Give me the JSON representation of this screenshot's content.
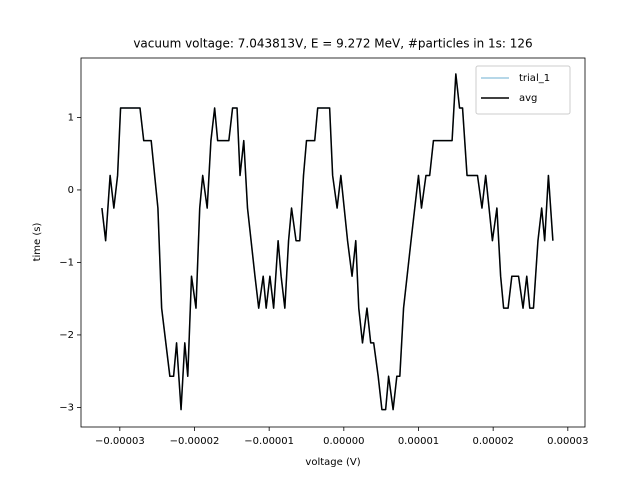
{
  "chart_data": {
    "type": "line",
    "title": "vacuum voltage: 7.043813V, E = 9.272 MeV, #particles in 1s: 126",
    "x_label": "voltage (V)",
    "y_label": "time (s)",
    "x": [
      -3.24e-05,
      -3.19e-05,
      -3.13e-05,
      -3.08e-05,
      -3.03e-05,
      -2.99e-05,
      -2.73e-05,
      -2.68e-05,
      -2.58e-05,
      -2.49e-05,
      -2.44e-05,
      -2.33e-05,
      -2.28e-05,
      -2.24e-05,
      -2.18e-05,
      -2.13e-05,
      -2.09e-05,
      -2.04e-05,
      -1.98e-05,
      -1.93e-05,
      -1.89e-05,
      -1.83e-05,
      -1.78e-05,
      -1.73e-05,
      -1.69e-05,
      -1.54e-05,
      -1.49e-05,
      -1.43e-05,
      -1.39e-05,
      -1.34e-05,
      -1.29e-05,
      -1.19e-05,
      -1.14e-05,
      -1.08e-05,
      -1.04e-05,
      -9.9e-06,
      -9.4e-06,
      -8.8e-06,
      -8.4e-06,
      -7.9e-06,
      -7.4e-06,
      -7e-06,
      -6.4e-06,
      -5.9e-06,
      -5.4e-06,
      -5e-06,
      -3.9e-06,
      -3.5e-06,
      -1.9e-06,
      -1.5e-06,
      -9e-07,
      -4e-07,
      5e-07,
      1.1e-06,
      1.6e-06,
      2e-06,
      2.5e-06,
      3.1e-06,
      3.6e-06,
      4e-06,
      4.6e-06,
      5.1e-06,
      5.6e-06,
      6e-06,
      6.6e-06,
      7.1e-06,
      7.5e-06,
      8e-06,
      9e-06,
      1e-05,
      1.04e-05,
      1.1e-05,
      1.15e-05,
      1.2e-05,
      1.45e-05,
      1.5e-05,
      1.55e-05,
      1.59e-05,
      1.65e-05,
      1.79e-05,
      1.85e-05,
      1.9e-05,
      1.99e-05,
      2.05e-05,
      2.1e-05,
      2.14e-05,
      2.2e-05,
      2.25e-05,
      2.34e-05,
      2.4e-05,
      2.45e-05,
      2.49e-05,
      2.54e-05,
      2.6e-05,
      2.65e-05,
      2.69e-05,
      2.74e-05,
      2.8e-05
    ],
    "series": [
      {
        "name": "trial_1",
        "color": "#9ecae1",
        "values": [
          -0.25,
          -0.7,
          0.2,
          -0.25,
          0.2,
          1.13,
          1.13,
          0.68,
          0.68,
          -0.25,
          -1.63,
          -2.57,
          -2.57,
          -2.11,
          -3.03,
          -2.11,
          -2.57,
          -1.19,
          -1.63,
          -0.25,
          0.2,
          -0.25,
          0.68,
          1.13,
          0.68,
          0.68,
          1.13,
          1.13,
          0.2,
          0.68,
          -0.25,
          -1.19,
          -1.63,
          -1.19,
          -1.63,
          -1.19,
          -1.63,
          -0.7,
          -1.19,
          -1.63,
          -0.7,
          -0.25,
          -0.7,
          -0.7,
          0.2,
          0.68,
          0.68,
          1.13,
          1.13,
          0.2,
          -0.25,
          0.2,
          -0.7,
          -1.19,
          -0.7,
          -1.63,
          -2.11,
          -1.63,
          -2.11,
          -2.11,
          -2.57,
          -3.03,
          -3.03,
          -2.57,
          -3.03,
          -2.57,
          -2.57,
          -1.63,
          -0.7,
          0.2,
          -0.25,
          0.2,
          0.2,
          0.68,
          0.68,
          1.6,
          1.13,
          1.13,
          0.2,
          0.2,
          -0.25,
          0.2,
          -0.7,
          -0.25,
          -1.19,
          -1.63,
          -1.63,
          -1.19,
          -1.19,
          -1.63,
          -1.19,
          -1.63,
          -1.63,
          -0.7,
          -0.25,
          -0.7,
          0.2,
          -0.7
        ]
      },
      {
        "name": "avg",
        "color": "#000000",
        "values": [
          -0.25,
          -0.7,
          0.2,
          -0.25,
          0.2,
          1.13,
          1.13,
          0.68,
          0.68,
          -0.25,
          -1.63,
          -2.57,
          -2.57,
          -2.11,
          -3.03,
          -2.11,
          -2.57,
          -1.19,
          -1.63,
          -0.25,
          0.2,
          -0.25,
          0.68,
          1.13,
          0.68,
          0.68,
          1.13,
          1.13,
          0.2,
          0.68,
          -0.25,
          -1.19,
          -1.63,
          -1.19,
          -1.63,
          -1.19,
          -1.63,
          -0.7,
          -1.19,
          -1.63,
          -0.7,
          -0.25,
          -0.7,
          -0.7,
          0.2,
          0.68,
          0.68,
          1.13,
          1.13,
          0.2,
          -0.25,
          0.2,
          -0.7,
          -1.19,
          -0.7,
          -1.63,
          -2.11,
          -1.63,
          -2.11,
          -2.11,
          -2.57,
          -3.03,
          -3.03,
          -2.57,
          -3.03,
          -2.57,
          -2.57,
          -1.63,
          -0.7,
          0.2,
          -0.25,
          0.2,
          0.2,
          0.68,
          0.68,
          1.6,
          1.13,
          1.13,
          0.2,
          0.2,
          -0.25,
          0.2,
          -0.7,
          -0.25,
          -1.19,
          -1.63,
          -1.63,
          -1.19,
          -1.19,
          -1.63,
          -1.19,
          -1.63,
          -1.63,
          -0.7,
          -0.25,
          -0.7,
          0.2,
          -0.7
        ]
      }
    ],
    "xlim": [
      -3.52e-05,
      3.23e-05
    ],
    "ylim": [
      -3.27,
      1.82
    ],
    "xticks": [
      {
        "value": -3e-05,
        "label": "−0.00003"
      },
      {
        "value": -2e-05,
        "label": "−0.00002"
      },
      {
        "value": -1e-05,
        "label": "−0.00001"
      },
      {
        "value": 0,
        "label": "0.00000"
      },
      {
        "value": 1e-05,
        "label": "0.00001"
      },
      {
        "value": 2e-05,
        "label": "0.00002"
      },
      {
        "value": 3e-05,
        "label": "0.00003"
      }
    ],
    "yticks": [
      {
        "value": -3,
        "label": "−3"
      },
      {
        "value": -2,
        "label": "−2"
      },
      {
        "value": -1,
        "label": "−1"
      },
      0,
      1
    ],
    "grid": false,
    "legend": "upper-right"
  }
}
